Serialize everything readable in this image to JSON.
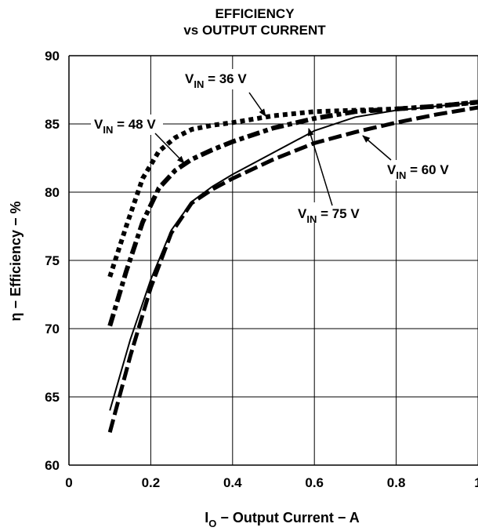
{
  "chart_data": {
    "type": "line",
    "title": "EFFICIENCY",
    "subtitle": "vs OUTPUT CURRENT",
    "xlabel_main": "I",
    "xlabel_sub": "O",
    "xlabel_rest": " − Output Current − A",
    "ylabel": "η − Efficiency − %",
    "xlim": [
      0,
      1
    ],
    "ylim": [
      60,
      90
    ],
    "xticks": [
      0,
      0.2,
      0.4,
      0.6,
      0.8,
      1
    ],
    "xtick_labels": [
      "0",
      "0.2",
      "0.4",
      "0.6",
      "0.8",
      "1"
    ],
    "yticks": [
      60,
      65,
      70,
      75,
      80,
      85,
      90
    ],
    "grid": true,
    "series": [
      {
        "name": "VIN = 36 V",
        "style": "dotted",
        "x": [
          0.1,
          0.14,
          0.18,
          0.22,
          0.26,
          0.3,
          0.35,
          0.4,
          0.5,
          0.6,
          0.7,
          0.8,
          0.9,
          1.0
        ],
        "y": [
          73.8,
          77.5,
          81.0,
          83.0,
          84.0,
          84.6,
          84.9,
          85.1,
          85.6,
          85.9,
          86.0,
          86.1,
          86.3,
          86.6
        ]
      },
      {
        "name": "VIN = 48 V",
        "style": "dashdot",
        "x": [
          0.1,
          0.14,
          0.18,
          0.22,
          0.26,
          0.3,
          0.35,
          0.4,
          0.5,
          0.6,
          0.7,
          0.8,
          0.9,
          1.0
        ],
        "y": [
          70.2,
          74.2,
          77.8,
          80.3,
          81.6,
          82.4,
          83.1,
          83.7,
          84.7,
          85.4,
          85.9,
          86.1,
          86.3,
          86.6
        ]
      },
      {
        "name": "VIN = 60 V",
        "style": "dashed",
        "x": [
          0.1,
          0.15,
          0.2,
          0.25,
          0.3,
          0.35,
          0.4,
          0.5,
          0.6,
          0.7,
          0.8,
          0.9,
          1.0
        ],
        "y": [
          62.4,
          68.0,
          73.0,
          77.0,
          79.2,
          80.2,
          81.0,
          82.4,
          83.6,
          84.4,
          85.1,
          85.7,
          86.2
        ]
      },
      {
        "name": "VIN = 75 V",
        "style": "solid",
        "x": [
          0.1,
          0.15,
          0.2,
          0.25,
          0.3,
          0.35,
          0.4,
          0.5,
          0.6,
          0.7,
          0.8,
          0.9,
          1.0
        ],
        "y": [
          64.0,
          69.2,
          73.6,
          77.2,
          79.3,
          80.4,
          81.3,
          82.9,
          84.5,
          85.5,
          86.0,
          86.3,
          86.6
        ]
      }
    ],
    "annotations": [
      {
        "main": "V",
        "sub": "IN",
        "rest": " = 36 V"
      },
      {
        "main": "V",
        "sub": "IN",
        "rest": " = 48 V"
      },
      {
        "main": "V",
        "sub": "IN",
        "rest": " = 60 V"
      },
      {
        "main": "V",
        "sub": "IN",
        "rest": " = 75 V"
      }
    ]
  }
}
